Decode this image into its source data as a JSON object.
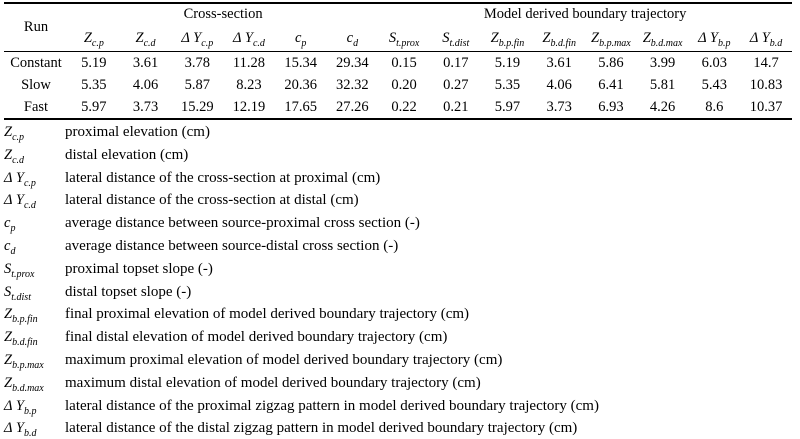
{
  "page": {
    "background_color": "#ffffff",
    "text_color": "#000000"
  },
  "table": {
    "run_header": "Run",
    "groups": [
      {
        "label": "Cross-section",
        "colspan": 6
      },
      {
        "label": "Model derived boundary trajectory",
        "colspan": 8
      }
    ],
    "columns": [
      {
        "base": "Z",
        "sub": "c.p"
      },
      {
        "base": "Z",
        "sub": "c.d"
      },
      {
        "base": "Δ Y",
        "sub": "c.p"
      },
      {
        "base": "Δ Y",
        "sub": "c.d"
      },
      {
        "base": "c",
        "sub": "p"
      },
      {
        "base": "c",
        "sub": "d"
      },
      {
        "base": "S",
        "sub": "t.prox"
      },
      {
        "base": "S",
        "sub": "t.dist"
      },
      {
        "base": "Z",
        "sub": "b.p.fin"
      },
      {
        "base": "Z",
        "sub": "b.d.fin"
      },
      {
        "base": "Z",
        "sub": "b.p.max"
      },
      {
        "base": "Z",
        "sub": "b.d.max"
      },
      {
        "base": "Δ Y",
        "sub": "b.p"
      },
      {
        "base": "Δ Y",
        "sub": "b.d"
      }
    ],
    "rows": [
      {
        "label": "Constant",
        "values": [
          "5.19",
          "3.61",
          "3.78",
          "11.28",
          "15.34",
          "29.34",
          "0.15",
          "0.17",
          "5.19",
          "3.61",
          "5.86",
          "3.99",
          "6.03",
          "14.7"
        ]
      },
      {
        "label": "Slow",
        "values": [
          "5.35",
          "4.06",
          "5.87",
          "8.23",
          "20.36",
          "32.32",
          "0.20",
          "0.27",
          "5.35",
          "4.06",
          "6.41",
          "5.81",
          "5.43",
          "10.83"
        ]
      },
      {
        "label": "Fast",
        "values": [
          "5.97",
          "3.73",
          "15.29",
          "12.19",
          "17.65",
          "27.26",
          "0.22",
          "0.21",
          "5.97",
          "3.73",
          "6.93",
          "4.26",
          "8.6",
          "10.37"
        ]
      }
    ]
  },
  "legend": {
    "items": [
      {
        "base": "Z",
        "sub": "c.p",
        "description": "proximal elevation (cm)"
      },
      {
        "base": "Z",
        "sub": "c.d",
        "description": "distal elevation (cm)"
      },
      {
        "base": "Δ Y",
        "sub": "c.p",
        "description": "lateral distance of the cross-section at proximal (cm)"
      },
      {
        "base": "Δ Y",
        "sub": "c.d",
        "description": "lateral distance of the cross-section at distal (cm)"
      },
      {
        "base": "c",
        "sub": "p",
        "description": "average distance between source-proximal cross section (-)"
      },
      {
        "base": "c",
        "sub": "d",
        "description": "average distance between source-distal cross section (-)"
      },
      {
        "base": "S",
        "sub": "t.prox",
        "description": "proximal topset slope (-)"
      },
      {
        "base": "S",
        "sub": "t.dist",
        "description": "distal topset slope (-)"
      },
      {
        "base": "Z",
        "sub": "b.p.fin",
        "description": "final proximal elevation of model derived boundary trajectory (cm)"
      },
      {
        "base": "Z",
        "sub": "b.d.fin",
        "description": "final distal elevation of model derived boundary trajectory (cm)"
      },
      {
        "base": "Z",
        "sub": "b.p.max",
        "description": "maximum proximal elevation of model derived boundary trajectory (cm)"
      },
      {
        "base": "Z",
        "sub": "b.d.max",
        "description": "maximum distal elevation of model derived boundary trajectory (cm)"
      },
      {
        "base": "Δ Y",
        "sub": "b.p",
        "description": "lateral distance of the proximal zigzag pattern in model derived boundary trajectory (cm)"
      },
      {
        "base": "Δ Y",
        "sub": "b.d",
        "description": "lateral distance of the distal zigzag pattern in model derived boundary trajectory (cm)"
      }
    ]
  }
}
